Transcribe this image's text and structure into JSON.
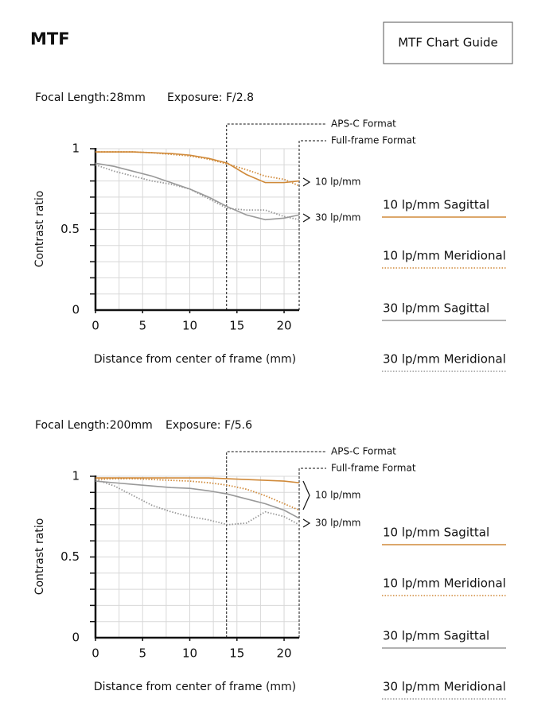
{
  "title": "MTF",
  "guide_button": "MTF Chart Guide",
  "chart_data": [
    {
      "type": "line",
      "focal_length": "Focal Length:28mm",
      "exposure": "Exposure: F/2.8",
      "xlabel": "Distance from center of frame (mm)",
      "ylabel": "Contrast ratio",
      "x": [
        0,
        2,
        4,
        6,
        8,
        10,
        12,
        14,
        16,
        18,
        20,
        21.6
      ],
      "series": [
        {
          "name": "10 lp/mm Sagittal",
          "color": "#d08a3a",
          "style": "solid",
          "values": [
            0.98,
            0.98,
            0.98,
            0.975,
            0.97,
            0.96,
            0.94,
            0.91,
            0.84,
            0.79,
            0.79,
            0.8
          ]
        },
        {
          "name": "10 lp/mm Meridional",
          "color": "#d08a3a",
          "style": "dotted",
          "values": [
            0.98,
            0.98,
            0.98,
            0.975,
            0.965,
            0.955,
            0.935,
            0.905,
            0.87,
            0.83,
            0.81,
            0.77
          ]
        },
        {
          "name": "30 lp/mm Sagittal",
          "color": "#999999",
          "style": "solid",
          "values": [
            0.91,
            0.89,
            0.86,
            0.83,
            0.79,
            0.75,
            0.7,
            0.64,
            0.59,
            0.56,
            0.57,
            0.59
          ]
        },
        {
          "name": "30 lp/mm Meridional",
          "color": "#999999",
          "style": "dotted",
          "values": [
            0.9,
            0.86,
            0.83,
            0.8,
            0.78,
            0.75,
            0.69,
            0.63,
            0.62,
            0.62,
            0.58,
            0.56
          ]
        }
      ],
      "curve_labels": [
        "10 lp/mm",
        "30 lp/mm"
      ],
      "markers": [
        {
          "label": "APS-C Format",
          "x": 13.9
        },
        {
          "label": "Full-frame Format",
          "x": 21.6
        }
      ],
      "xlim": [
        0,
        21.6
      ],
      "ylim": [
        0,
        1
      ],
      "xticks": [
        0,
        5,
        10,
        15,
        20
      ],
      "yticks": [
        0,
        0.5,
        1
      ],
      "xgrid": [
        2.5,
        5,
        7.5,
        10,
        12.5,
        15,
        17.5,
        20
      ],
      "ygrid": [
        0.1,
        0.2,
        0.3,
        0.4,
        0.5,
        0.6,
        0.7,
        0.8,
        0.9,
        1
      ]
    },
    {
      "type": "line",
      "focal_length": "Focal Length:200mm",
      "exposure": "Exposure: F/5.6",
      "xlabel": "Distance from center of frame (mm)",
      "ylabel": "Contrast ratio",
      "x": [
        0,
        2,
        4,
        6,
        8,
        10,
        12,
        14,
        16,
        18,
        20,
        21.6
      ],
      "series": [
        {
          "name": "10 lp/mm Sagittal",
          "color": "#d08a3a",
          "style": "solid",
          "values": [
            0.99,
            0.99,
            0.99,
            0.99,
            0.99,
            0.99,
            0.99,
            0.985,
            0.98,
            0.975,
            0.97,
            0.96
          ]
        },
        {
          "name": "10 lp/mm Meridional",
          "color": "#d08a3a",
          "style": "dotted",
          "values": [
            0.98,
            0.985,
            0.985,
            0.98,
            0.975,
            0.97,
            0.96,
            0.945,
            0.92,
            0.88,
            0.83,
            0.79
          ]
        },
        {
          "name": "30 lp/mm Sagittal",
          "color": "#999999",
          "style": "solid",
          "values": [
            0.97,
            0.96,
            0.95,
            0.94,
            0.93,
            0.925,
            0.91,
            0.89,
            0.86,
            0.83,
            0.79,
            0.74
          ]
        },
        {
          "name": "30 lp/mm Meridional",
          "color": "#999999",
          "style": "dotted",
          "values": [
            0.98,
            0.94,
            0.88,
            0.82,
            0.78,
            0.75,
            0.73,
            0.7,
            0.71,
            0.78,
            0.75,
            0.7
          ]
        }
      ],
      "curve_labels": [
        "10 lp/mm",
        "30 lp/mm"
      ],
      "markers": [
        {
          "label": "APS-C Format",
          "x": 13.9
        },
        {
          "label": "Full-frame Format",
          "x": 21.6
        }
      ],
      "xlim": [
        0,
        21.6
      ],
      "ylim": [
        0,
        1
      ],
      "xticks": [
        0,
        5,
        10,
        15,
        20
      ],
      "yticks": [
        0,
        0.5,
        1
      ],
      "xgrid": [
        2.5,
        5,
        7.5,
        10,
        12.5,
        15,
        17.5,
        20
      ],
      "ygrid": [
        0.1,
        0.2,
        0.3,
        0.4,
        0.5,
        0.6,
        0.7,
        0.8,
        0.9,
        1
      ]
    }
  ]
}
